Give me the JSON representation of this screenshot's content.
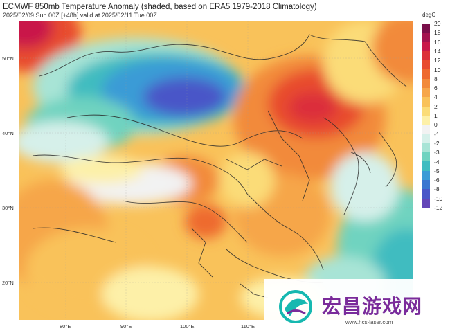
{
  "header": {
    "title": "ECMWF 850mb Temperature Anomaly (shaded, based on ERA5 1979-2018 Climatology)",
    "subtitle": "2025/02/09 Sun 00Z [+48h] valid at 2025/02/11 Tue 00Z"
  },
  "axes": {
    "lat_labels": [
      "50°N",
      "40°N",
      "30°N",
      "20°N"
    ],
    "lon_labels": [
      "80°E",
      "90°E",
      "100°E",
      "110°E"
    ]
  },
  "colorbar": {
    "unit": "degC",
    "ticks": [
      "20",
      "18",
      "16",
      "14",
      "12",
      "10",
      "8",
      "6",
      "4",
      "2",
      "1",
      "0",
      "-1",
      "-2",
      "-3",
      "-4",
      "-5",
      "-6",
      "-8",
      "-10",
      "-12"
    ],
    "colors": [
      "#7a0f4a",
      "#a3134f",
      "#c9184a",
      "#dc2f3a",
      "#e84c2f",
      "#ee6a2f",
      "#f28a3a",
      "#f6a64a",
      "#f9c25a",
      "#fbdc78",
      "#fdf0a8",
      "#f2f2f2",
      "#d6f0ea",
      "#a8e4d6",
      "#6fd3c0",
      "#3fbcc0",
      "#3b9bd6",
      "#3a76d0",
      "#4957c8",
      "#6446b8"
    ]
  },
  "watermark": {
    "text": "宏昌游戏网",
    "url": "www.hcs-laser.com"
  }
}
